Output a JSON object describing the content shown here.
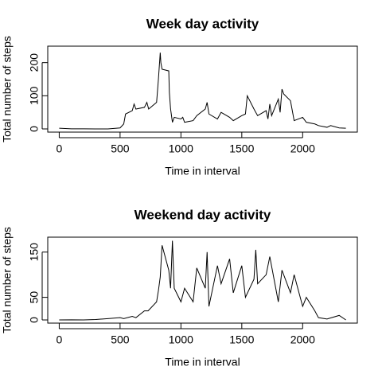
{
  "chart_data": [
    {
      "type": "line",
      "title": "Week day activity",
      "xlabel": "Time in interval",
      "ylabel": "Total number of steps",
      "x": [
        0,
        100,
        200,
        300,
        400,
        500,
        530,
        545,
        600,
        615,
        630,
        700,
        720,
        735,
        800,
        815,
        830,
        835,
        845,
        900,
        905,
        915,
        930,
        945,
        1000,
        1015,
        1030,
        1100,
        1130,
        1200,
        1215,
        1230,
        1300,
        1330,
        1400,
        1430,
        1500,
        1530,
        1545,
        1600,
        1630,
        1700,
        1715,
        1730,
        1745,
        1800,
        1815,
        1830,
        1845,
        1900,
        1930,
        2000,
        2030,
        2100,
        2130,
        2200,
        2230,
        2300,
        2355
      ],
      "series": [
        {
          "name": "steps",
          "color": "#000000",
          "values": [
            2,
            0.4,
            0.2,
            0,
            0.1,
            3,
            15,
            45,
            55,
            75,
            60,
            65,
            80,
            60,
            80,
            150,
            230,
            200,
            180,
            175,
            110,
            60,
            20,
            35,
            30,
            35,
            20,
            25,
            40,
            60,
            80,
            45,
            30,
            50,
            35,
            25,
            40,
            45,
            100,
            60,
            40,
            55,
            30,
            75,
            40,
            90,
            50,
            120,
            105,
            85,
            25,
            35,
            20,
            15,
            10,
            5,
            10,
            3,
            2
          ]
        }
      ],
      "xlim": [
        -94.2,
        2449.2
      ],
      "xticks": [
        0,
        500,
        1000,
        1500,
        2000
      ],
      "ylim": [
        -9.6,
        249.6
      ],
      "yticks": [
        0,
        100,
        200
      ]
    },
    {
      "type": "line",
      "title": "Weekend day activity",
      "xlabel": "Time in interval",
      "ylabel": "Total number of steps",
      "x": [
        0,
        100,
        200,
        300,
        400,
        500,
        530,
        600,
        630,
        700,
        730,
        800,
        815,
        830,
        845,
        900,
        915,
        930,
        945,
        1000,
        1030,
        1100,
        1130,
        1200,
        1215,
        1230,
        1300,
        1330,
        1400,
        1430,
        1500,
        1530,
        1600,
        1615,
        1630,
        1700,
        1730,
        1800,
        1830,
        1900,
        1930,
        2000,
        2030,
        2100,
        2130,
        2200,
        2300,
        2355
      ],
      "series": [
        {
          "name": "steps",
          "color": "#000000",
          "values": [
            0,
            0.3,
            0,
            1,
            3,
            5,
            3,
            8,
            5,
            20,
            20,
            40,
            65,
            95,
            165,
            110,
            70,
            175,
            70,
            40,
            70,
            40,
            115,
            70,
            150,
            30,
            120,
            80,
            135,
            60,
            120,
            50,
            90,
            155,
            80,
            100,
            140,
            40,
            110,
            60,
            100,
            30,
            50,
            20,
            5,
            2,
            10,
            0
          ]
        }
      ],
      "xlim": [
        -94.2,
        2449.2
      ],
      "xticks": [
        0,
        500,
        1000,
        1500,
        2000
      ],
      "ylim": [
        -7,
        183
      ],
      "yticks": [
        0,
        50,
        150
      ]
    }
  ]
}
